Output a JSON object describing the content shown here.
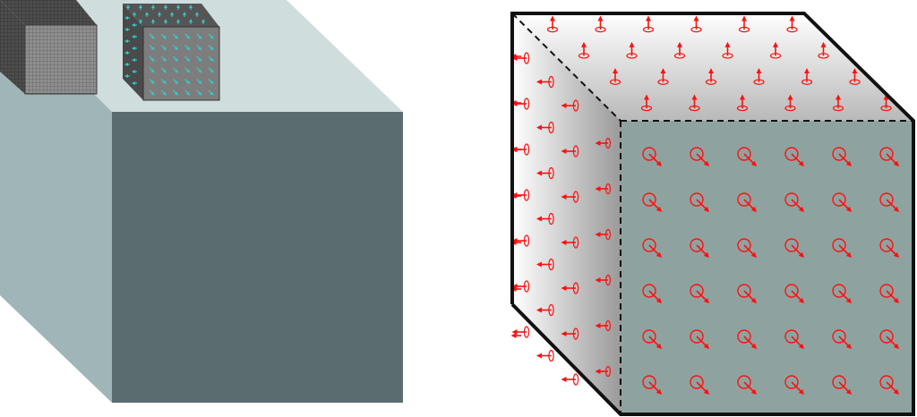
{
  "diagram": {
    "left_block": {
      "colors": {
        "top": "#cfdedd",
        "left": "#a0b5b8",
        "front": "#5a6c6f"
      },
      "small_cubes": [
        {
          "name": "fine-mesh-cube",
          "texture": "dense-grid",
          "colors": {
            "front": "#8a8a8a",
            "top": "#5a5a5a",
            "side": "#444444"
          }
        },
        {
          "name": "vector-field-cube",
          "texture": "cyan-arrows",
          "colors": {
            "front": "#7d7d7d",
            "top": "#555555",
            "side": "#4a4a4a",
            "arrow": "#39c6c6"
          }
        }
      ]
    },
    "right_block": {
      "colors": {
        "front": "#8ea3a0",
        "top_light": "#ffffff",
        "top_dark": "#b9b9b9",
        "side_light": "#ffffff",
        "side_dark": "#9a9a9a",
        "edge": "#111111",
        "arrow": "#ff1010"
      },
      "faces": [
        {
          "name": "front-face",
          "arrow_direction": "into-page-down-right",
          "grid": [
            6,
            6
          ]
        },
        {
          "name": "top-face",
          "arrow_direction": "up",
          "grid": [
            4,
            6
          ]
        },
        {
          "name": "left-face",
          "arrow_direction": "left",
          "grid": [
            7,
            3
          ]
        }
      ]
    }
  }
}
